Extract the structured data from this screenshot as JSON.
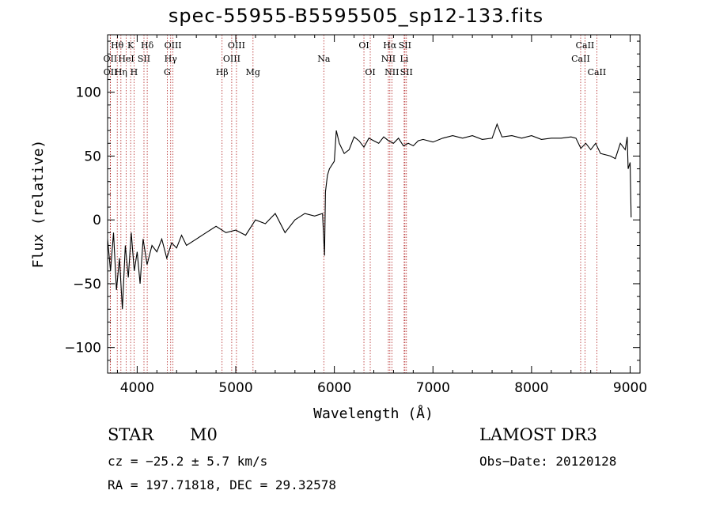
{
  "chart_data": {
    "type": "line",
    "title": "spec-55955-B5595505_sp12-133.fits",
    "xlabel": "Wavelength (Å)",
    "ylabel": "Flux (relative)",
    "xlim": [
      3700,
      9100
    ],
    "ylim": [
      -120,
      145
    ],
    "xticks": [
      4000,
      5000,
      6000,
      7000,
      8000,
      9000
    ],
    "yticks": [
      -100,
      -50,
      0,
      50,
      100
    ],
    "grid": false,
    "line_color": "#000000",
    "marker_color": "#b22222",
    "series": [
      {
        "x": [
          3700,
          3730,
          3760,
          3790,
          3820,
          3850,
          3880,
          3910,
          3940,
          3970,
          4000,
          4030,
          4060,
          4100,
          4150,
          4200,
          4250,
          4300,
          4350,
          4400,
          4450,
          4500,
          4600,
          4700,
          4800,
          4900,
          5000,
          5100,
          5200,
          5300,
          5400,
          5500,
          5600,
          5700,
          5800,
          5880,
          5900,
          5910,
          5930,
          5950,
          6000,
          6020,
          6050,
          6100,
          6150,
          6200,
          6250,
          6300,
          6350,
          6400,
          6450,
          6500,
          6550,
          6600,
          6650,
          6700,
          6750,
          6800,
          6850,
          6900,
          7000,
          7100,
          7200,
          7300,
          7400,
          7500,
          7600,
          7650,
          7700,
          7800,
          7900,
          8000,
          8100,
          8200,
          8300,
          8400,
          8450,
          8500,
          8550,
          8600,
          8650,
          8700,
          8800,
          8850,
          8900,
          8950,
          8970,
          8980,
          9000,
          9010
        ],
        "y": [
          -15,
          -40,
          -10,
          -55,
          -30,
          -70,
          -20,
          -45,
          -10,
          -40,
          -25,
          -50,
          -15,
          -35,
          -20,
          -25,
          -15,
          -30,
          -18,
          -22,
          -12,
          -20,
          -15,
          -10,
          -5,
          -10,
          -8,
          -12,
          0,
          -3,
          5,
          -10,
          0,
          5,
          3,
          5,
          -28,
          22,
          35,
          40,
          46,
          70,
          60,
          52,
          55,
          65,
          62,
          57,
          64,
          62,
          60,
          65,
          62,
          60,
          64,
          58,
          60,
          58,
          62,
          63,
          61,
          64,
          66,
          64,
          66,
          63,
          64,
          75,
          65,
          66,
          64,
          66,
          63,
          64,
          64,
          65,
          64,
          56,
          60,
          55,
          60,
          52,
          50,
          48,
          60,
          55,
          65,
          40,
          45,
          2
        ]
      }
    ],
    "line_markers": [
      {
        "label": "Hθ",
        "x": 3798,
        "row": 1
      },
      {
        "label": "OII",
        "x": 3727,
        "row": 2
      },
      {
        "label": "OII",
        "x": 3729,
        "row": 3
      },
      {
        "label": "K",
        "x": 3934,
        "row": 1
      },
      {
        "label": "HeI",
        "x": 3889,
        "row": 2
      },
      {
        "label": "Hη",
        "x": 3835,
        "row": 3
      },
      {
        "label": "SII",
        "x": 4069,
        "row": 2
      },
      {
        "label": "H",
        "x": 3968,
        "row": 3
      },
      {
        "label": "Hδ",
        "x": 4102,
        "row": 1
      },
      {
        "label": "OIII",
        "x": 4363,
        "row": 1
      },
      {
        "label": "Hγ",
        "x": 4340,
        "row": 2
      },
      {
        "label": "G",
        "x": 4305,
        "row": 3
      },
      {
        "label": "OIII",
        "x": 5007,
        "row": 1
      },
      {
        "label": "OIII",
        "x": 4959,
        "row": 2
      },
      {
        "label": "Hβ",
        "x": 4861,
        "row": 3
      },
      {
        "label": "Mg",
        "x": 5175,
        "row": 3
      },
      {
        "label": "Na",
        "x": 5893,
        "row": 2
      },
      {
        "label": "OI",
        "x": 6300,
        "row": 1
      },
      {
        "label": "OI",
        "x": 6364,
        "row": 3
      },
      {
        "label": "Hα",
        "x": 6563,
        "row": 1
      },
      {
        "label": "SII",
        "x": 6716,
        "row": 1
      },
      {
        "label": "NII",
        "x": 6548,
        "row": 2
      },
      {
        "label": "Li",
        "x": 6708,
        "row": 2
      },
      {
        "label": "NII",
        "x": 6583,
        "row": 3
      },
      {
        "label": "SII",
        "x": 6731,
        "row": 3
      },
      {
        "label": "CaII",
        "x": 8542,
        "row": 1
      },
      {
        "label": "CaII",
        "x": 8498,
        "row": 2
      },
      {
        "label": "CaII",
        "x": 8662,
        "row": 3
      }
    ]
  },
  "info": {
    "class": "STAR",
    "subclass": "M0",
    "survey": "LAMOST DR3",
    "cz": "cz = −25.2 ± 5.7 km/s",
    "obs_date": "Obs−Date: 20120128",
    "radec": "RA = 197.71818, DEC =  29.32578"
  }
}
